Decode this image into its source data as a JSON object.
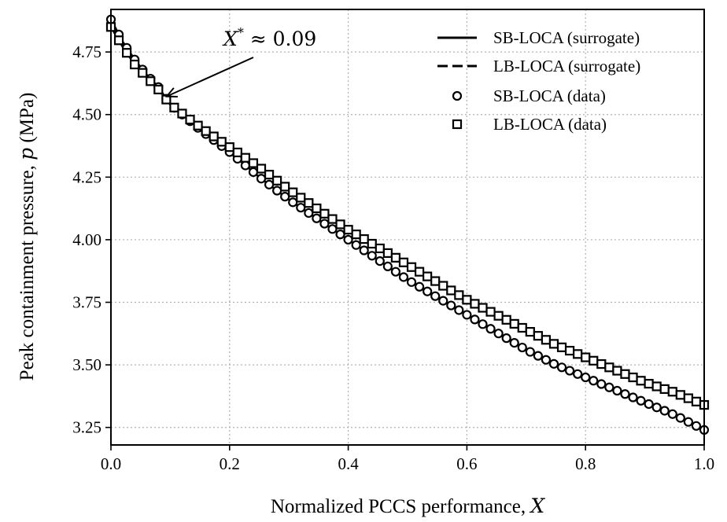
{
  "chart_data": {
    "type": "line",
    "xlabel_prefix": "Normalized PCCS performance, ",
    "xlabel_var": "X",
    "ylabel_prefix": "Peak containment pressure, ",
    "ylabel_var": "p",
    "ylabel_suffix": " (MPa)",
    "xlim": [
      0.0,
      1.0
    ],
    "ylim": [
      3.18,
      4.92
    ],
    "xticks": [
      "0.0",
      "0.2",
      "0.4",
      "0.6",
      "0.8",
      "1.0"
    ],
    "yticks": [
      "3.25",
      "3.50",
      "3.75",
      "4.00",
      "4.25",
      "4.50",
      "4.75"
    ],
    "grid": true,
    "legend_position": "top-right",
    "legend": [
      "SB-LOCA (surrogate)",
      "LB-LOCA (surrogate)",
      "SB-LOCA (data)",
      "LB-LOCA (data)"
    ],
    "annotation": {
      "var": "X",
      "sup": "*",
      "rest": " ≈ 0.09",
      "x": 0.09,
      "y": 4.56
    },
    "series": [
      {
        "name": "SB-LOCA (surrogate)",
        "style": "solid",
        "x": [
          0.0,
          0.02,
          0.04,
          0.06,
          0.08,
          0.1,
          0.15,
          0.2,
          0.25,
          0.3,
          0.35,
          0.4,
          0.45,
          0.5,
          0.55,
          0.6,
          0.65,
          0.7,
          0.75,
          0.8,
          0.85,
          0.9,
          0.95,
          1.0
        ],
        "y": [
          4.88,
          4.79,
          4.72,
          4.66,
          4.61,
          4.54,
          4.44,
          4.35,
          4.25,
          4.16,
          4.08,
          4.0,
          3.92,
          3.84,
          3.77,
          3.7,
          3.63,
          3.56,
          3.5,
          3.45,
          3.4,
          3.35,
          3.3,
          3.24
        ]
      },
      {
        "name": "LB-LOCA (surrogate)",
        "style": "dashed",
        "x": [
          0.0,
          0.02,
          0.04,
          0.06,
          0.08,
          0.1,
          0.15,
          0.2,
          0.25,
          0.3,
          0.35,
          0.4,
          0.45,
          0.5,
          0.55,
          0.6,
          0.65,
          0.7,
          0.75,
          0.8,
          0.85,
          0.9,
          0.95,
          1.0
        ],
        "y": [
          4.85,
          4.77,
          4.7,
          4.65,
          4.6,
          4.54,
          4.45,
          4.37,
          4.29,
          4.2,
          4.12,
          4.04,
          3.97,
          3.9,
          3.83,
          3.76,
          3.7,
          3.64,
          3.58,
          3.53,
          3.48,
          3.43,
          3.39,
          3.34
        ]
      },
      {
        "name": "SB-LOCA (data)",
        "style": "circle",
        "x": [
          0.0,
          0.02,
          0.04,
          0.06,
          0.08,
          0.1,
          0.15,
          0.2,
          0.25,
          0.3,
          0.35,
          0.4,
          0.45,
          0.5,
          0.55,
          0.6,
          0.65,
          0.7,
          0.75,
          0.8,
          0.85,
          0.9,
          0.95,
          1.0
        ],
        "y": [
          4.88,
          4.79,
          4.72,
          4.66,
          4.61,
          4.54,
          4.44,
          4.35,
          4.25,
          4.16,
          4.08,
          4.0,
          3.92,
          3.84,
          3.77,
          3.7,
          3.63,
          3.56,
          3.5,
          3.45,
          3.4,
          3.35,
          3.3,
          3.24
        ]
      },
      {
        "name": "LB-LOCA (data)",
        "style": "square",
        "x": [
          0.0,
          0.02,
          0.04,
          0.06,
          0.08,
          0.1,
          0.15,
          0.2,
          0.25,
          0.3,
          0.35,
          0.4,
          0.45,
          0.5,
          0.55,
          0.6,
          0.65,
          0.7,
          0.75,
          0.8,
          0.85,
          0.9,
          0.95,
          1.0
        ],
        "y": [
          4.85,
          4.77,
          4.7,
          4.65,
          4.6,
          4.54,
          4.45,
          4.37,
          4.29,
          4.2,
          4.12,
          4.04,
          3.97,
          3.9,
          3.83,
          3.76,
          3.7,
          3.64,
          3.58,
          3.53,
          3.48,
          3.43,
          3.39,
          3.34
        ]
      }
    ]
  }
}
